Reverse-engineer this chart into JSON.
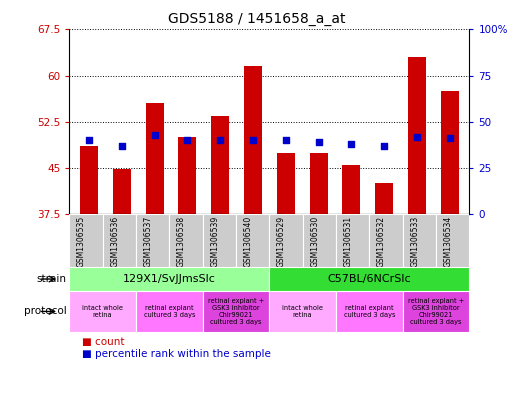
{
  "title": "GDS5188 / 1451658_a_at",
  "samples": [
    "GSM1306535",
    "GSM1306536",
    "GSM1306537",
    "GSM1306538",
    "GSM1306539",
    "GSM1306540",
    "GSM1306529",
    "GSM1306530",
    "GSM1306531",
    "GSM1306532",
    "GSM1306533",
    "GSM1306534"
  ],
  "count_values": [
    48.5,
    44.8,
    55.5,
    50.0,
    53.5,
    61.5,
    47.5,
    47.5,
    45.5,
    42.5,
    63.0,
    57.5
  ],
  "percentile_values": [
    40,
    37,
    43,
    40,
    40,
    40,
    40,
    39,
    38,
    37,
    42,
    41
  ],
  "bar_bottom": 37.5,
  "ylim_left": [
    37.5,
    67.5
  ],
  "ylim_right": [
    0,
    100
  ],
  "yticks_left": [
    37.5,
    45.0,
    52.5,
    60.0,
    67.5
  ],
  "yticks_right": [
    0,
    25,
    50,
    75,
    100
  ],
  "ytick_labels_left": [
    "37.5",
    "45",
    "52.5",
    "60",
    "67.5"
  ],
  "ytick_labels_right": [
    "0",
    "25",
    "50",
    "75",
    "100%"
  ],
  "bar_color": "#cc0000",
  "dot_color": "#0000cc",
  "strain_groups": [
    {
      "label": "129X1/SvJJmsSlc",
      "start": 0,
      "end": 5,
      "color": "#99ff99"
    },
    {
      "label": "C57BL/6NCrSlc",
      "start": 6,
      "end": 11,
      "color": "#33dd33"
    }
  ],
  "protocol_groups": [
    {
      "label": "intact whole\nretina",
      "start": 0,
      "end": 1,
      "color": "#ffaaff"
    },
    {
      "label": "retinal explant\ncultured 3 days",
      "start": 2,
      "end": 3,
      "color": "#ff77ff"
    },
    {
      "label": "retinal explant +\nGSK3 inhibitor\nChir99021\ncultured 3 days",
      "start": 4,
      "end": 5,
      "color": "#dd44dd"
    },
    {
      "label": "intact whole\nretina",
      "start": 6,
      "end": 7,
      "color": "#ffaaff"
    },
    {
      "label": "retinal explant\ncultured 3 days",
      "start": 8,
      "end": 9,
      "color": "#ff77ff"
    },
    {
      "label": "retinal explant +\nGSK3 inhibitor\nChir99021\ncultured 3 days",
      "start": 10,
      "end": 11,
      "color": "#dd44dd"
    }
  ],
  "background_color": "#ffffff",
  "label_color_left": "#cc0000",
  "label_color_right": "#0000cc",
  "sample_box_color": "#cccccc"
}
